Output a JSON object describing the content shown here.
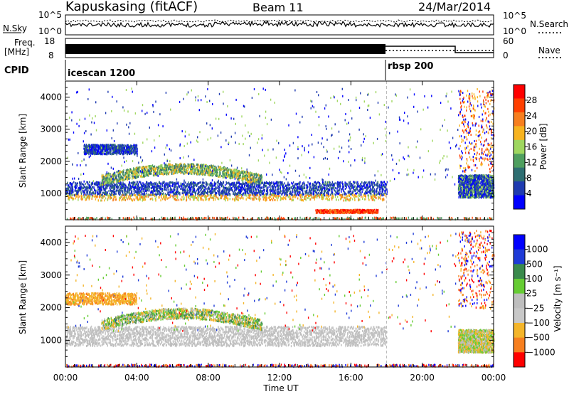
{
  "header": {
    "station": "Kapuskasing (fitACF)",
    "beam": "Beam 11",
    "date": "24/Mar/2014"
  },
  "panels": {
    "nsky_label": "N.Sky",
    "nsky_ticks": [
      "10^5",
      "10^0"
    ],
    "nsearch_label": "N.Search",
    "nsearch_ticks": [
      "10^5",
      "10^0"
    ],
    "freq_label_line1": "Freq.",
    "freq_label_line2": "[MHz]",
    "freq_ticks": [
      "18",
      "8"
    ],
    "nave_label": "Nave",
    "nave_ticks": [
      "60",
      "0"
    ],
    "cpid_label": "CPID",
    "cpid_segments": [
      "icescan 1200",
      "rbsp 200"
    ]
  },
  "colors": {
    "power_scale": [
      "#0000ff",
      "#1f3bb0",
      "#2f6f72",
      "#4f9f5f",
      "#9fd75f",
      "#f7b31f",
      "#f77f1f",
      "#ff3f00",
      "#ff0000"
    ],
    "velocity_scale": [
      "#0000ff",
      "#1f3bd7",
      "#3a8a4c",
      "#66cc33",
      "#bebebe",
      "#c8c8c8",
      "#f4b52a",
      "#f77f1f",
      "#ff0000"
    ],
    "ground_scatter": "#bebebe"
  },
  "chart_data": [
    {
      "type": "heatmap",
      "name": "power",
      "ylabel": "Slant Range [km]",
      "yticks": [
        "4000",
        "3000",
        "2000",
        "1000"
      ],
      "ylim": [
        180,
        4500
      ],
      "colorbar_label": "Power [dB]",
      "colorbar_ticks": [
        "28",
        "24",
        "20",
        "16",
        "12",
        "8",
        "4"
      ],
      "features": [
        {
          "t0": 0.0,
          "t1": 18.0,
          "r0": 950,
          "r1": 1400,
          "level": "8"
        },
        {
          "t0": 2.0,
          "t1": 11.0,
          "r0": 1450,
          "r1": 2000,
          "level": "12"
        },
        {
          "t0": 14.0,
          "t1": 17.5,
          "r0": 420,
          "r1": 520,
          "level": "28"
        },
        {
          "t0": 22.0,
          "t1": 24.0,
          "r0": 950,
          "r1": 1600,
          "level": "8"
        }
      ]
    },
    {
      "type": "heatmap",
      "name": "velocity",
      "ylabel": "Slant Range [km]",
      "yticks": [
        "4000",
        "3000",
        "2000",
        "1000"
      ],
      "ylim": [
        180,
        4500
      ],
      "colorbar_label": "Velocity [m s⁻¹]",
      "colorbar_ticks": [
        "1000",
        "500",
        "100",
        "25",
        "−25",
        "−100",
        "−500",
        "−1000"
      ],
      "xlabel": "Time UT",
      "xticks": [
        "00:00",
        "04:00",
        "08:00",
        "12:00",
        "16:00",
        "20:00",
        "00:00"
      ],
      "xlim": [
        0,
        24
      ]
    }
  ]
}
